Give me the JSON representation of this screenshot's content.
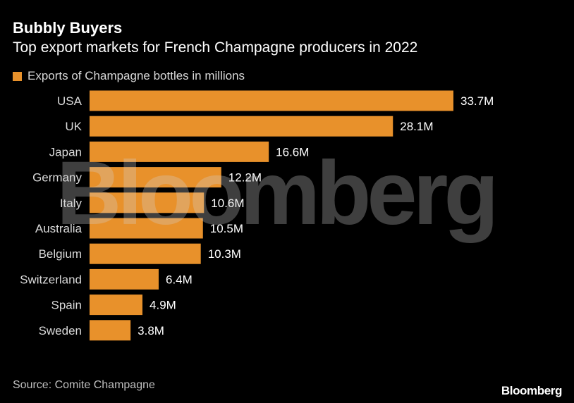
{
  "header": {
    "title": "Bubbly Buyers",
    "subtitle": "Top export markets for French Champagne producers in 2022"
  },
  "footer": {
    "source": "Source: Comite Champagne",
    "logo": "Bloomberg"
  },
  "watermark": "Bloomberg",
  "colors": {
    "bar": "#e8912b",
    "background": "#000000"
  },
  "chart_data": {
    "type": "bar",
    "orientation": "horizontal",
    "title": "Bubbly Buyers",
    "subtitle": "Top export markets for French Champagne producers in 2022",
    "categories": [
      "USA",
      "UK",
      "Japan",
      "Germany",
      "Italy",
      "Australia",
      "Belgium",
      "Switzerland",
      "Spain",
      "Sweden"
    ],
    "series": [
      {
        "name": "Exports of Champagne bottles in millions",
        "values": [
          33.7,
          28.1,
          16.6,
          12.2,
          10.6,
          10.5,
          10.3,
          6.4,
          4.9,
          3.8
        ],
        "labels": [
          "33.7M",
          "28.1M",
          "16.6M",
          "12.2M",
          "10.6M",
          "10.5M",
          "10.3M",
          "6.4M",
          "4.9M",
          "3.8M"
        ]
      }
    ],
    "xlim": [
      0,
      33.7
    ],
    "grid": false,
    "legend": "top-left"
  }
}
